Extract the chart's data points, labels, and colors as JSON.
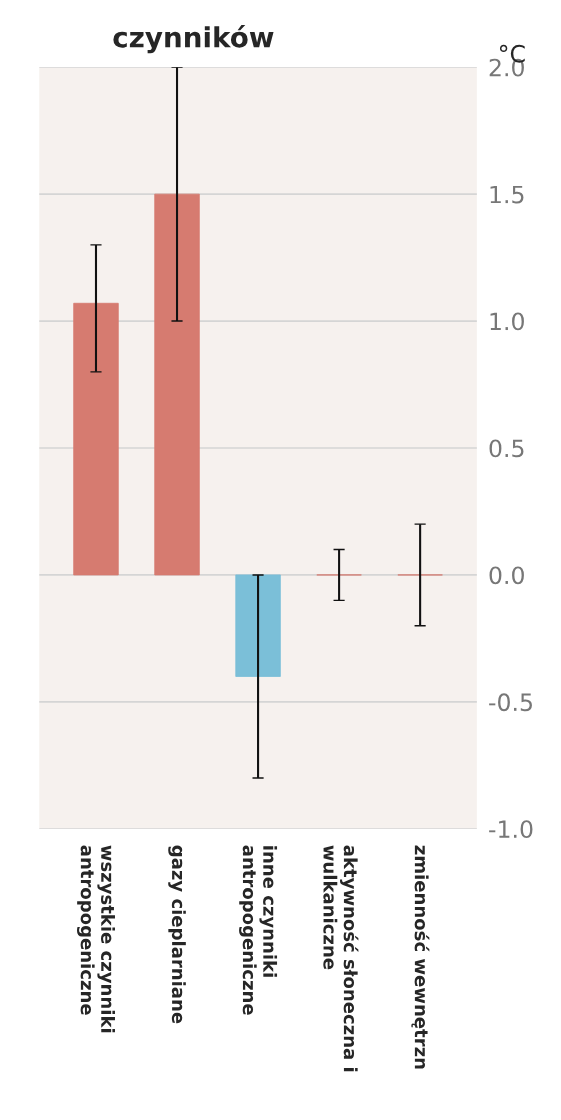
{
  "chart_data": {
    "type": "bar",
    "title": "czynników",
    "ylabel": "°C",
    "categories": [
      "wszystkie czynniki\nantropogeniczne",
      "gazy cieplarniane",
      "inne czynniki\nantropogeniczne",
      "aktywność słoneczna i\nwulkaniczne",
      "zmienność wewnętrzn"
    ],
    "values": [
      1.07,
      1.5,
      -0.4,
      0,
      0
    ],
    "colors": [
      "#d67b70",
      "#d67b70",
      "#7bbfd8",
      "#d67b70",
      "#d67b70"
    ],
    "errors": [
      [
        0.8,
        1.3
      ],
      [
        1.0,
        2.0
      ],
      [
        -0.8,
        0.0
      ],
      0.1,
      0.2
    ],
    "ylim": [
      -1.0,
      2.0
    ],
    "yticks": [
      {
        "value": -1.0,
        "label": "-1.0"
      },
      {
        "value": -0.5,
        "label": "-0.5"
      },
      {
        "value": 0,
        "label": "0.0"
      },
      {
        "value": 0.5,
        "label": "0.5"
      },
      {
        "value": 1.0,
        "label": "1.0"
      },
      {
        "value": 1.5,
        "label": "1.5"
      },
      {
        "value": 2.0,
        "label": "2.0"
      }
    ],
    "grid": "y"
  }
}
